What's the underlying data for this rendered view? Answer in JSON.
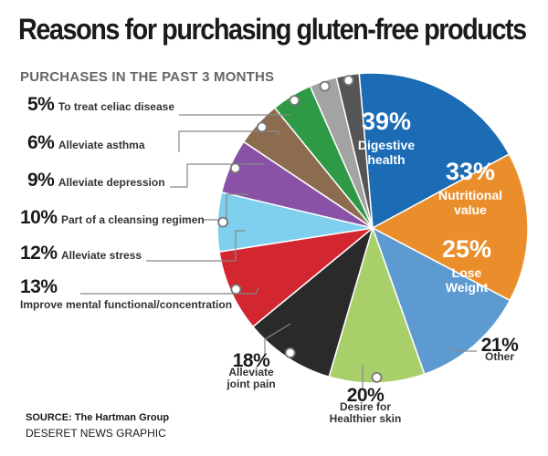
{
  "header": {
    "title": "Reasons for purchasing gluten-free products",
    "subtitle": "PURCHASES IN THE PAST 3 MONTHS"
  },
  "footer": {
    "source": "SOURCE: The Hartman Group",
    "credit": "DESERET NEWS GRAPHIC"
  },
  "chart_data": {
    "type": "pie",
    "title": "Reasons for purchasing gluten-free products",
    "subtitle": "PURCHASES IN THE PAST 3 MONTHS",
    "slices": [
      {
        "pct": "39%",
        "value": 39,
        "label_lines": [
          "Digestive",
          "health"
        ],
        "color": "#1b6bb5"
      },
      {
        "pct": "33%",
        "value": 33,
        "label_lines": [
          "Nutritional",
          "value"
        ],
        "color": "#ea8e2b"
      },
      {
        "pct": "25%",
        "value": 25,
        "label_lines": [
          "Lose",
          "Weight"
        ],
        "color": "#5c9ad1"
      },
      {
        "pct": "21%",
        "value": 21,
        "label_lines": [
          "Other"
        ],
        "color": "#a8cf6a"
      },
      {
        "pct": "20%",
        "value": 20,
        "label_lines": [
          "Desire for",
          "Healthier skin"
        ],
        "color": "#2a2a2a"
      },
      {
        "pct": "18%",
        "value": 18,
        "label_lines": [
          "Alleviate",
          "joint pain"
        ],
        "color": "#d22630"
      },
      {
        "pct": "13%",
        "value": 13,
        "label_lines": [
          "Improve mental functional/concentration"
        ],
        "color": "#7fd0ee"
      },
      {
        "pct": "12%",
        "value": 12,
        "label_lines": [
          "Alleviate stress"
        ],
        "color": "#8a52a6"
      },
      {
        "pct": "10%",
        "value": 10,
        "label_lines": [
          "Part of a cleansing regimen"
        ],
        "color": "#8b6c4f"
      },
      {
        "pct": "9%",
        "value": 9,
        "label_lines": [
          "Alleviate depression"
        ],
        "color": "#2e9a45"
      },
      {
        "pct": "6%",
        "value": 6,
        "label_lines": [
          "Alleviate asthma"
        ],
        "color": "#a3a3a3"
      },
      {
        "pct": "5%",
        "value": 5,
        "label_lines": [
          "To treat celiac disease"
        ],
        "color": "#555555"
      }
    ]
  }
}
